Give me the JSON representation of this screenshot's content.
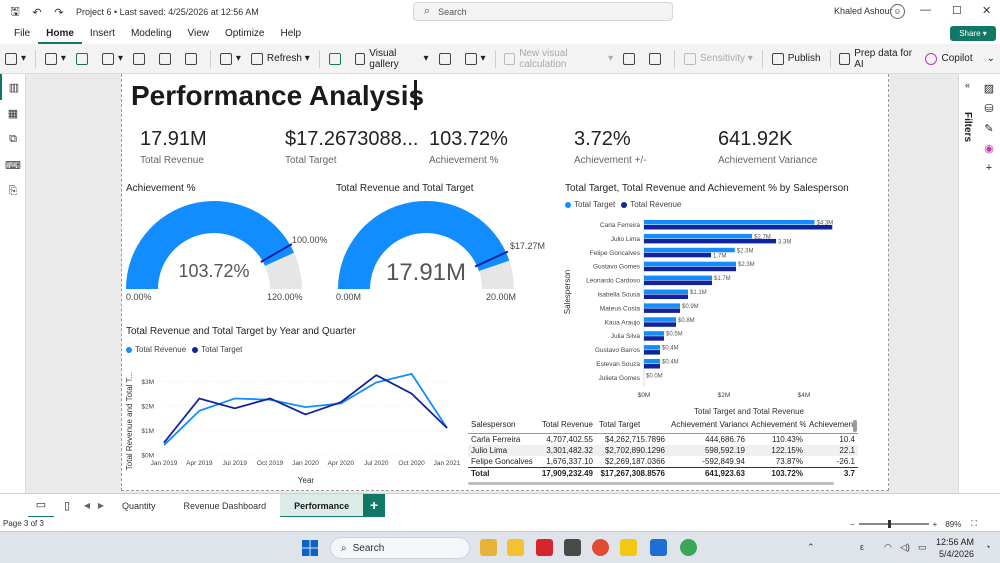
{
  "window": {
    "doc_title": "Project 6 • Last saved: 4/25/2026 at 12:56 AM",
    "search_placeholder": "Search",
    "user_name": "Khaled Ashour",
    "share_label": "Share"
  },
  "menu": [
    "File",
    "Home",
    "Insert",
    "Modeling",
    "View",
    "Optimize",
    "Help"
  ],
  "ribbon": {
    "refresh": "Refresh",
    "visual_gallery": "Visual gallery",
    "new_visual_calc": "New visual calculation",
    "sensitivity": "Sensitivity",
    "publish": "Publish",
    "prep_ai": "Prep data for AI",
    "copilot": "Copilot"
  },
  "filters_label": "Filters",
  "report": {
    "title": "Performance Analysis",
    "kpis": [
      {
        "value": "17.91M",
        "label": "Total Revenue"
      },
      {
        "value": "$17.2673088...",
        "label": "Total Target"
      },
      {
        "value": "103.72%",
        "label": "Achievement %"
      },
      {
        "value": "3.72%",
        "label": "Achievement +/-"
      },
      {
        "value": "641.92K",
        "label": "Achievement Variance"
      }
    ],
    "gauge1": {
      "title": "Achievement %",
      "value_label": "103.72%",
      "min_label": "0.00%",
      "max_label": "120.00%",
      "target_label": "100.00%",
      "value": 103.72,
      "min": 0,
      "max": 120,
      "target": 100
    },
    "gauge2": {
      "title": "Total Revenue and Total Target",
      "value_label": "17.91M",
      "min_label": "0.00M",
      "max_label": "20.00M",
      "target_label": "$17.27M",
      "value": 17.91,
      "min": 0,
      "max": 20,
      "target": 17.27
    },
    "bar_chart": {
      "title": "Total Target, Total Revenue and Achievement % by Salesperson",
      "ylabel": "Salesperson",
      "xlabel": "Total Target and Total Revenue"
    },
    "line_chart": {
      "title": "Total Revenue and Total Target by Year and Quarter",
      "ylabel": "Total Revenue and Total T...",
      "xlabel": "Year"
    },
    "table": {
      "headers": [
        "Salesperson",
        "Total Revenue",
        "Total Target",
        "Achievement Variance",
        "Achievement %",
        "Achievement"
      ],
      "rows": [
        [
          "Carla Ferreira",
          "4,707,402.55",
          "$4,262,715.7896",
          "444,686.76",
          "110.43%",
          "10.4"
        ],
        [
          "Julio Lima",
          "3,301,482.32",
          "$2,702,890.1296",
          "598,592.19",
          "122.15%",
          "22.1"
        ],
        [
          "Felipe Goncalves",
          "1,676,337.10",
          "$2,269,187.0366",
          "-592,849.94",
          "73.87%",
          "-26.1"
        ]
      ],
      "total": [
        "Total",
        "17,909,232.49",
        "$17,267,308.8576",
        "641,923.63",
        "103.72%",
        "3.7"
      ]
    }
  },
  "chart_data": [
    {
      "type": "bar",
      "title": "Total Target, Total Revenue and Achievement % by Salesperson",
      "xlabel": "Total Target and Total Revenue",
      "ylabel": "Salesperson",
      "orientation": "horizontal",
      "xlim": [
        0,
        4700000
      ],
      "x_ticks": [
        "$0M",
        "$2M",
        "$4M"
      ],
      "legend_position": "top-left",
      "categories": [
        "Carla Ferreira",
        "Julio Lima",
        "Felipe Goncalves",
        "Gustavo Gomes",
        "Leonardo Cardoso",
        "Isabella Sousa",
        "Mateus Costa",
        "Kaua Araujo",
        "Julia Silva",
        "Gustavo Barros",
        "Estevan Souza",
        "Julieta Gomes"
      ],
      "series": [
        {
          "name": "Total Target",
          "color": "#118dff",
          "values": [
            4262716,
            2702890,
            2269187,
            2300000,
            1700000,
            1100000,
            900000,
            800000,
            500000,
            400000,
            400000,
            0
          ]
        },
        {
          "name": "Total Revenue",
          "color": "#12239e",
          "values": [
            4707403,
            3301482,
            1676337,
            2300000,
            1700000,
            1100000,
            900000,
            800000,
            500000,
            400000,
            400000,
            0
          ]
        }
      ],
      "data_labels": [
        "$4.3M",
        "$2.7M",
        "3.3M",
        "$2.3M",
        "1.7M",
        "$2.3M",
        "$1.7M",
        "$1.1M",
        "$0.9M",
        "$0.8M",
        "$0.5M",
        "$0.4M",
        "$0.4M",
        "$0.0M"
      ]
    },
    {
      "type": "line",
      "title": "Total Revenue and Total Target by Year and Quarter",
      "xlabel": "Year",
      "ylabel": "Total Revenue and Total T...",
      "ylim": [
        0,
        3500000
      ],
      "y_ticks": [
        "$0M",
        "$1M",
        "$2M",
        "$3M"
      ],
      "x": [
        "Jan 2019",
        "Apr 2019",
        "Jul 2019",
        "Oct 2019",
        "Jan 2020",
        "Apr 2020",
        "Jul 2020",
        "Oct 2020",
        "Jan 2021"
      ],
      "legend_position": "top-left",
      "series": [
        {
          "name": "Total Revenue",
          "color": "#118dff",
          "values": [
            400000,
            1800000,
            2300000,
            2250000,
            1950000,
            2100000,
            2950000,
            3300000,
            1100000
          ]
        },
        {
          "name": "Total Target",
          "color": "#12239e",
          "values": [
            500000,
            2300000,
            1900000,
            2300000,
            1650000,
            2150000,
            3250000,
            2500000,
            1100000
          ]
        }
      ]
    },
    {
      "type": "gauge",
      "title": "Achievement %",
      "value": 103.72,
      "min": 0,
      "max": 120,
      "target": 100
    },
    {
      "type": "gauge",
      "title": "Total Revenue and Total Target",
      "value": 17.91,
      "min": 0,
      "max": 20,
      "target": 17.27
    }
  ],
  "tabs": [
    "Quantity",
    "Revenue Dashboard",
    "Performance"
  ],
  "status": {
    "page": "Page 3 of 3",
    "zoom": "89%",
    "zoom_fraction": 0.44
  },
  "taskbar": {
    "search": "Search",
    "time": "12:56 AM",
    "date": "5/4/2026",
    "lang": "ε"
  },
  "colors": {
    "accent": "#117865",
    "series_light": "#118dff",
    "series_dark": "#12239e",
    "gauge_bg": "#e6e6e6"
  }
}
